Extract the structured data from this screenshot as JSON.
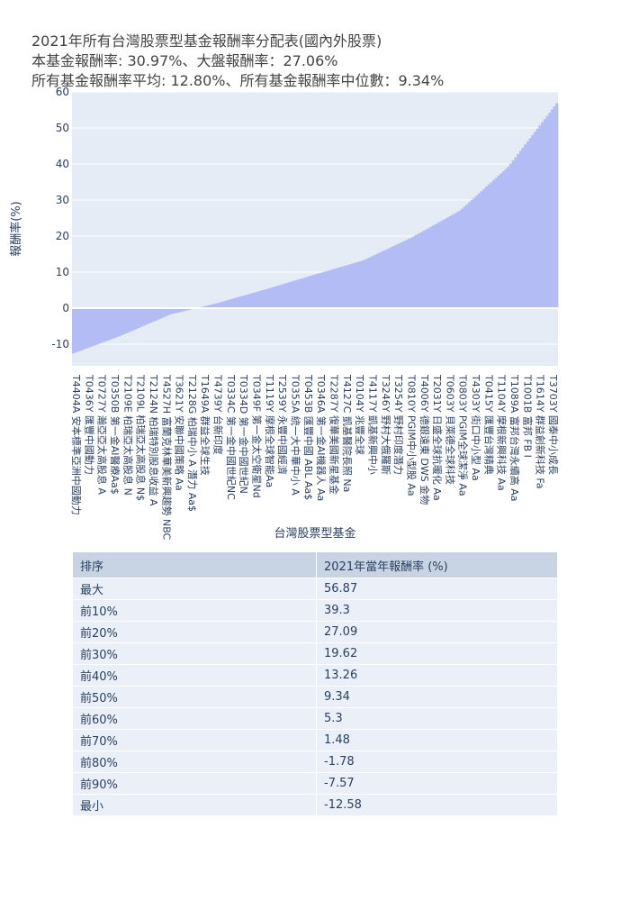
{
  "titles": {
    "line1": "2021年所有台灣股票型基金報酬率分配表(國內外股票)",
    "line2": "本基金報酬率: 30.97%、大盤報酬率：27.06%",
    "line3": "所有基金報酬率平均: 12.80%、所有基金報酬率中位數：9.34%"
  },
  "chart_data": {
    "type": "bar",
    "xlabel": "台灣股票型基金",
    "ylabel": "報酬率(%)",
    "ylim": [
      -16,
      60
    ],
    "yticks": [
      -10,
      0,
      10,
      20,
      30,
      40,
      50,
      60
    ],
    "bar_color": "#b4bcf5",
    "plot_bg": "#e5ecf6",
    "grid": true,
    "n_bars": 200,
    "percentiles": [
      {
        "pct": 0,
        "value": -12.58
      },
      {
        "pct": 10,
        "value": -7.57
      },
      {
        "pct": 20,
        "value": -1.78
      },
      {
        "pct": 30,
        "value": 1.48
      },
      {
        "pct": 40,
        "value": 5.3
      },
      {
        "pct": 50,
        "value": 9.34
      },
      {
        "pct": 60,
        "value": 13.26
      },
      {
        "pct": 70,
        "value": 19.62
      },
      {
        "pct": 80,
        "value": 27.09
      },
      {
        "pct": 90,
        "value": 39.3
      },
      {
        "pct": 100,
        "value": 56.87
      }
    ],
    "tick_labels": [
      "T4404A 安本標準亞洲中國動力",
      "T0436Y 匯豐中國動力",
      "T0727Y 瀚亞亞太高股息 A",
      "T0350B 第一金AI醫療Aa$",
      "T2109E 柏瑞亞太高股息 N",
      "T2109L 柏瑞亞太高股息 N$",
      "T2124N 柏瑞特別股息收益 A",
      "T4527H 富蘭克林華美新興趨勢 NBC",
      "T3621Y 安聯中國策略 Aa",
      "T2128G 柏瑞中小 A 潛力 Aa$",
      "T1649A 群益全球生技",
      "T4739Y 台新印度",
      "T0334C 第一金中國世紀NC",
      "T0334D 第一金中國世紀N",
      "T0349F 第一金太空衛星Nd",
      "T1119Y 摩根全球智能Aa",
      "T2539Y 永豐中國經濟",
      "T0355A 統一大中華中小 A",
      "T0453B 匯豐中國 ABL Aa$",
      "T0346A 第一金AI機器人 Aa",
      "T2287Y 復華美國新星基金",
      "T4127C 凱基醫院長照 Na",
      "T0104Y 兆豐全球",
      "T4117Y 凱基新興中小",
      "T3246Y 野村大俄羅斯",
      "T3254Y 野村印度潛力",
      "T0810Y PGIM中小型股 Aa",
      "T4006Y 德銀遠東 DWS 金物",
      "T2031Y 日盛全球抗暖化 Aa",
      "T0603Y 貝萊德全球科技",
      "T0803Y PGIM全球潔淨 Aa",
      "T4303Y 街口中小型 Aa",
      "T0415Y 匯豐台灣精典",
      "T1104Y 摩根新興科技 Aa",
      "T1089A 富邦台灣永續高 Aa",
      "T1001B 富邦 FB I",
      "T1614Y 群益創新科技 Fa",
      "T3703Y 國泰中小成長"
    ]
  },
  "table": {
    "headers": [
      "排序",
      "2021年當年報酬率 (%)"
    ],
    "rows": [
      [
        "最大",
        "56.87"
      ],
      [
        "前10%",
        "39.3"
      ],
      [
        "前20%",
        "27.09"
      ],
      [
        "前30%",
        "19.62"
      ],
      [
        "前40%",
        "13.26"
      ],
      [
        "前50%",
        "9.34"
      ],
      [
        "前60%",
        "5.3"
      ],
      [
        "前70%",
        "1.48"
      ],
      [
        "前80%",
        "-1.78"
      ],
      [
        "前90%",
        "-7.57"
      ],
      [
        "最小",
        "-12.58"
      ]
    ]
  }
}
